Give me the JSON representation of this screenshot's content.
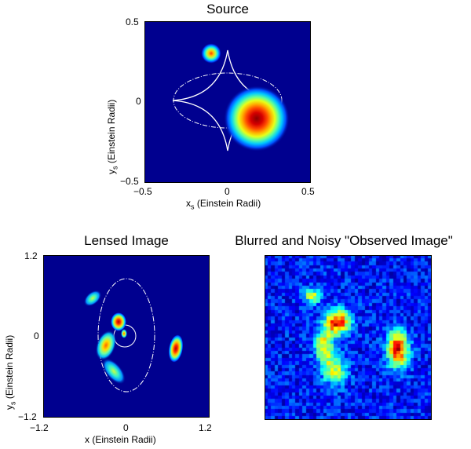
{
  "panels": {
    "source": {
      "title": "Source",
      "xlabel_main": "x",
      "xlabel_sub": "s",
      "xlabel_rest": " (Einstein Radii)",
      "ylabel_main": "y",
      "ylabel_sub": "s",
      "ylabel_rest": " (Einstein Radii)",
      "xticks": [
        "−0.5",
        "0",
        "0.5"
      ],
      "yticks": [
        "0.5",
        "0",
        "−0.5"
      ],
      "xlim": [
        -0.5,
        0.5
      ],
      "ylim": [
        -0.5,
        0.5
      ]
    },
    "lensed": {
      "title": "Lensed Image",
      "xlabel": "x (Einstein Radii)",
      "ylabel_main": "y",
      "ylabel_sub": "s",
      "ylabel_rest": " (Einstein Radii)",
      "xticks": [
        "−1.2",
        "0",
        "1.2"
      ],
      "yticks": [
        "1.2",
        "0",
        "−1.2"
      ],
      "xlim": [
        -1.2,
        1.2
      ],
      "ylim": [
        -1.2,
        1.2
      ]
    },
    "observed": {
      "title": "Blurred and Noisy \"Observed Image\""
    }
  },
  "colors": {
    "background": "#00008f",
    "curve": "#ffffff"
  }
}
